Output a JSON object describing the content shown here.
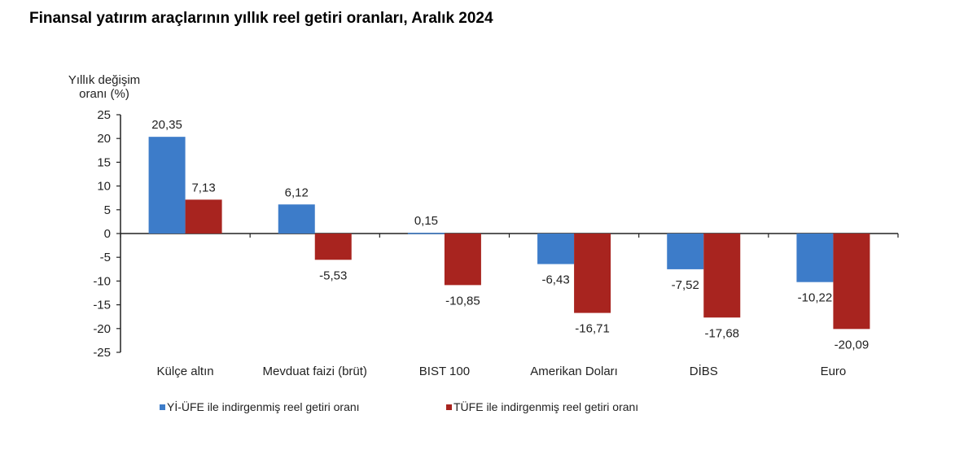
{
  "title": "Finansal yatırım araçlarının yıllık reel getiri oranları, Aralık 2024",
  "chart_data": {
    "type": "bar",
    "title": "Finansal yatırım araçlarının yıllık reel getiri oranları, Aralık 2024",
    "ylabel_lines": [
      "Yıllık değişim",
      "oranı (%)"
    ],
    "xlabel": "",
    "ylim": [
      -25,
      25
    ],
    "yticks": [
      25,
      20,
      15,
      10,
      5,
      0,
      -5,
      -10,
      -15,
      -20,
      -25
    ],
    "grid": false,
    "legend_position": "bottom",
    "categories": [
      "Külçe altın",
      "Mevduat faizi (brüt)",
      "BIST 100",
      "Amerikan Doları",
      "DİBS",
      "Euro"
    ],
    "series": [
      {
        "name": "Yİ-ÜFE ile indirgenmiş reel getiri oranı",
        "color": "#3d7cc9",
        "values": [
          20.35,
          6.12,
          0.15,
          -6.43,
          -7.52,
          -10.22
        ],
        "labels": [
          "20,35",
          "6,12",
          "0,15",
          "-6,43",
          "-7,52",
          "-10,22"
        ]
      },
      {
        "name": "TÜFE ile indirgenmiş reel getiri oranı",
        "color": "#a8241f",
        "values": [
          7.13,
          -5.53,
          -10.85,
          -16.71,
          -17.68,
          -20.09
        ],
        "labels": [
          "7,13",
          "-5,53",
          "-10,85",
          "-16,71",
          "-17,68",
          "-20,09"
        ]
      }
    ]
  }
}
